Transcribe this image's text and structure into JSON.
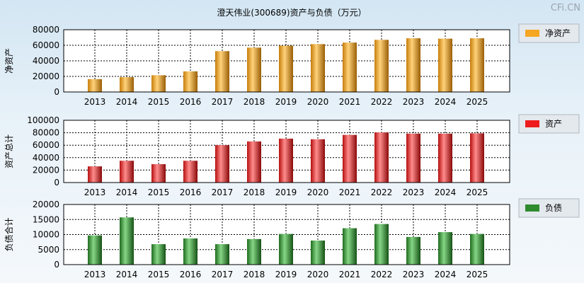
{
  "chart_data": {
    "title": "澄天伟业(300689)资产与负债（万元）",
    "watermark": "CFi.CN",
    "categories": [
      "2013",
      "2014",
      "2015",
      "2016",
      "2017",
      "2018",
      "2019",
      "2020",
      "2021",
      "2022",
      "2023",
      "2024",
      "2025"
    ],
    "panels": [
      {
        "type": "bar",
        "ylabel": "净资产",
        "legend": "净资产",
        "color": "#f5a623",
        "ylim": [
          0,
          80000
        ],
        "yticks": [
          0,
          20000,
          40000,
          60000,
          80000
        ],
        "values": [
          16500,
          19000,
          21500,
          26500,
          52500,
          57000,
          59500,
          61500,
          63500,
          67000,
          69000,
          68500,
          69000
        ]
      },
      {
        "type": "bar",
        "ylabel": "资产总计",
        "legend": "资产",
        "color": "#ee1c1c",
        "ylim": [
          0,
          100000
        ],
        "yticks": [
          0,
          20000,
          40000,
          60000,
          80000,
          100000
        ],
        "values": [
          26000,
          35000,
          29500,
          35000,
          60000,
          66000,
          70500,
          69500,
          76500,
          80500,
          78500,
          78500,
          79000
        ]
      },
      {
        "type": "bar",
        "ylabel": "负债合计",
        "legend": "负债",
        "color": "#2e8b2e",
        "ylim": [
          0,
          20000
        ],
        "yticks": [
          0,
          5000,
          10000,
          15000,
          20000
        ],
        "values": [
          9700,
          15700,
          6800,
          8700,
          6800,
          8500,
          10200,
          8000,
          12100,
          13500,
          9200,
          10800,
          10200
        ]
      }
    ]
  }
}
